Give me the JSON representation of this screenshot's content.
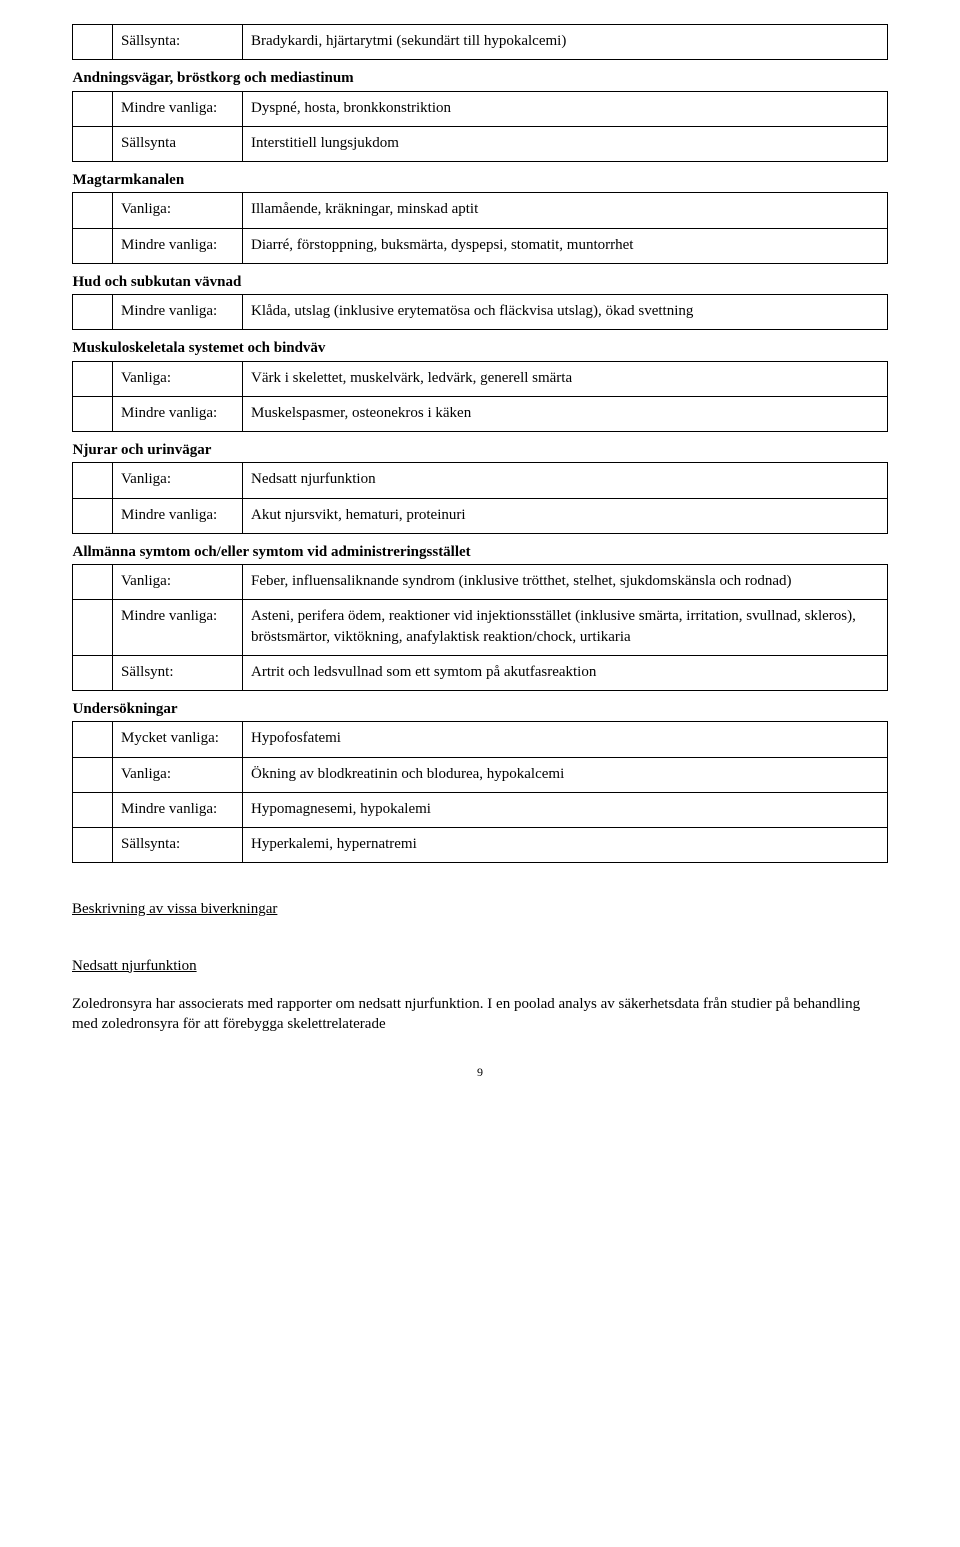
{
  "table": {
    "row1": {
      "freq": "Sällsynta:",
      "desc": "Bradykardi, hjärtarytmi (sekundärt till hypokalcemi)"
    },
    "sec2": "Andningsvägar, bröstkorg och mediastinum",
    "row2a": {
      "freq": "Mindre vanliga:",
      "desc": "Dyspné, hosta, bronkkonstriktion"
    },
    "row2b": {
      "freq": "Sällsynta",
      "desc": "Interstitiell lungsjukdom"
    },
    "sec3": "Magtarmkanalen",
    "row3a": {
      "freq": "Vanliga:",
      "desc": "Illamående, kräkningar, minskad aptit"
    },
    "row3b": {
      "freq": "Mindre vanliga:",
      "desc": "Diarré, förstoppning, buksmärta, dyspepsi, stomatit, muntorrhet"
    },
    "sec4": "Hud och subkutan vävnad",
    "row4a": {
      "freq": "Mindre vanliga:",
      "desc": "Klåda, utslag (inklusive erytematösa och fläckvisa utslag), ökad svettning"
    },
    "sec5": "Muskuloskeletala systemet och bindväv",
    "row5a": {
      "freq": "Vanliga:",
      "desc": "Värk i skelettet, muskelvärk, ledvärk, generell smärta"
    },
    "row5b": {
      "freq": "Mindre vanliga:",
      "desc": "Muskelspasmer, osteonekros i käken"
    },
    "sec6": "Njurar och urinvägar",
    "row6a": {
      "freq": "Vanliga:",
      "desc": "Nedsatt njurfunktion"
    },
    "row6b": {
      "freq": "Mindre vanliga:",
      "desc": "Akut njursvikt, hematuri, proteinuri"
    },
    "sec7": "Allmänna symtom och/eller symtom vid administreringsstället",
    "row7a": {
      "freq": "Vanliga:",
      "desc": "Feber, influensaliknande syndrom (inklusive trötthet, stelhet, sjukdomskänsla och rodnad)"
    },
    "row7b": {
      "freq": "Mindre vanliga:",
      "desc": "Asteni, perifera ödem, reaktioner vid injektionsstället (inklusive smärta, irritation, svullnad, skleros), bröstsmärtor, viktökning, anafylaktisk reaktion/chock, urtikaria"
    },
    "row7c": {
      "freq": "Sällsynt:",
      "desc": "Artrit och ledsvullnad som ett symtom på akutfasreaktion"
    },
    "sec8": "Undersökningar",
    "row8a": {
      "freq": "Mycket vanliga:",
      "desc": "Hypofosfatemi"
    },
    "row8b": {
      "freq": "Vanliga:",
      "desc": "Ökning av blodkreatinin och blodurea, hypokalcemi"
    },
    "row8c": {
      "freq": "Mindre vanliga:",
      "desc": "Hypomagnesemi, hypokalemi"
    },
    "row8d": {
      "freq": "Sällsynta:",
      "desc": "Hyperkalemi, hypernatremi"
    }
  },
  "subheading1": "Beskrivning av vissa biverkningar",
  "subheading2": "Nedsatt njurfunktion",
  "paragraph": "Zoledronsyra har associerats med rapporter om nedsatt njurfunktion. I en poolad analys av säkerhetsdata från studier på behandling med zoledronsyra för att förebygga skelettrelaterade",
  "pageNumber": "9"
}
